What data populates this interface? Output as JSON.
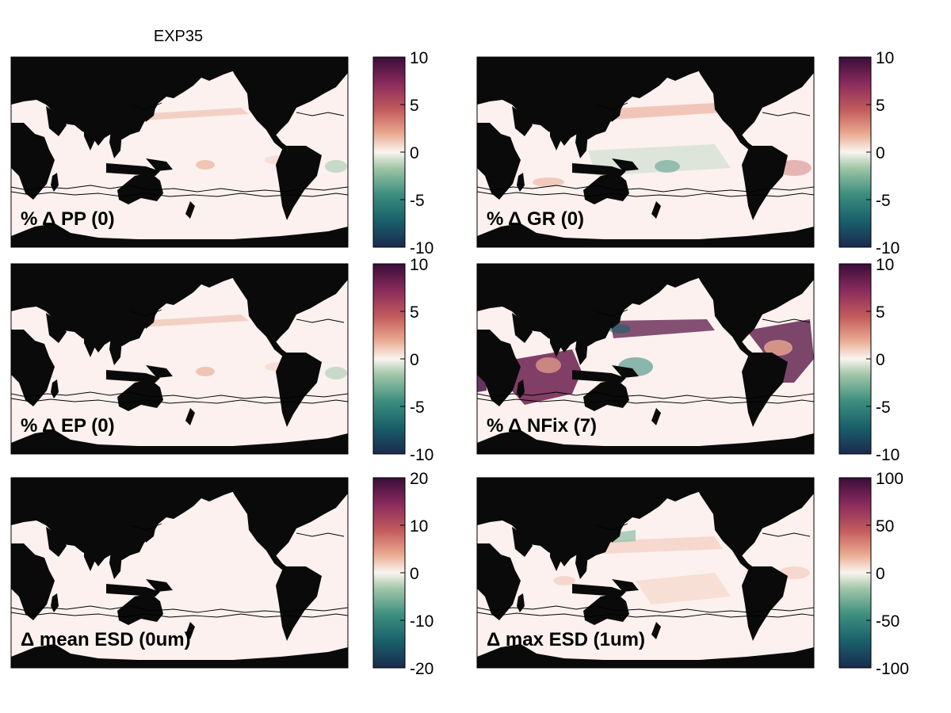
{
  "title": "EXP35",
  "colors": {
    "ocean_background": "#fcf1ee",
    "land": "#0a0a0a",
    "colormap": [
      "#1a2a4e",
      "#19606a",
      "#3d8f7f",
      "#a4c7a9",
      "#f9f5ef",
      "#e9a78e",
      "#c35c5d",
      "#8a2b5d",
      "#3a0d3a"
    ]
  },
  "panels": [
    {
      "id": "pp",
      "label": "% Δ PP (0)",
      "colorbar_ticks": [
        "10",
        "5",
        "0",
        "-5",
        "-10"
      ],
      "colorbar_range": [
        -10,
        10
      ],
      "feature": "weak"
    },
    {
      "id": "gr",
      "label": "% Δ GR (0)",
      "colorbar_ticks": [
        "10",
        "5",
        "0",
        "-5",
        "-10"
      ],
      "colorbar_range": [
        -10,
        10
      ],
      "feature": "moderate"
    },
    {
      "id": "ep",
      "label": "% Δ EP (0)",
      "colorbar_ticks": [
        "10",
        "5",
        "0",
        "-5",
        "-10"
      ],
      "colorbar_range": [
        -10,
        10
      ],
      "feature": "weak"
    },
    {
      "id": "nfix",
      "label": "% Δ NFix (7)",
      "colorbar_ticks": [
        "10",
        "5",
        "0",
        "-5",
        "-10"
      ],
      "colorbar_range": [
        -10,
        10
      ],
      "feature": "strong"
    },
    {
      "id": "mesd",
      "label": "Δ mean ESD (0um)",
      "colorbar_ticks": [
        "20",
        "10",
        "0",
        "-10",
        "-20"
      ],
      "colorbar_range": [
        -20,
        20
      ],
      "feature": "none"
    },
    {
      "id": "xesd",
      "label": "Δ max ESD (1um)",
      "colorbar_ticks": [
        "100",
        "50",
        "0",
        "-50",
        "-100"
      ],
      "colorbar_range": [
        -100,
        100
      ],
      "feature": "faint"
    }
  ]
}
